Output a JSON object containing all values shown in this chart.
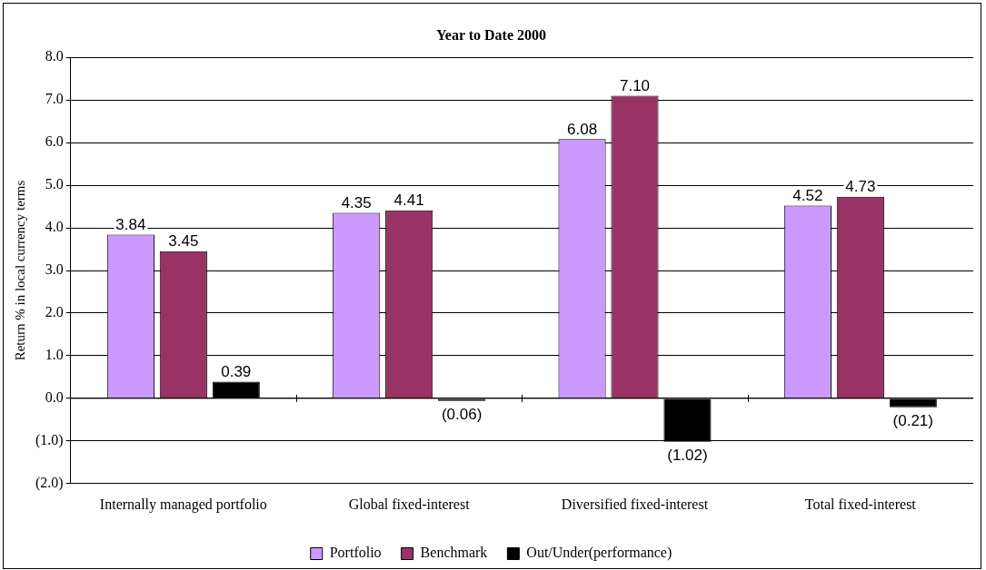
{
  "chart_data": {
    "type": "bar",
    "title": "Year to Date 2000",
    "ylabel": "Return % in local currency terms",
    "categories": [
      "Internally managed portfolio",
      "Global fixed-interest",
      "Diversified fixed-interest",
      "Total fixed-interest"
    ],
    "series": [
      {
        "name": "Portfolio",
        "color": "#cc99ff",
        "values": [
          3.84,
          4.35,
          6.08,
          4.52
        ],
        "value_labels": [
          "3.84",
          "4.35",
          "6.08",
          "4.52"
        ]
      },
      {
        "name": "Benchmark",
        "color": "#993366",
        "values": [
          3.45,
          4.41,
          7.1,
          4.73
        ],
        "value_labels": [
          "3.45",
          "4.41",
          "7.10",
          "4.73"
        ]
      },
      {
        "name": "Out/Under(performance)",
        "color": "#000000",
        "values": [
          0.39,
          -0.06,
          -1.02,
          -0.21
        ],
        "value_labels": [
          "0.39",
          "(0.06)",
          "(1.02)",
          "(0.21)"
        ]
      }
    ],
    "ylim": [
      -2,
      8
    ],
    "yticks": [
      {
        "value": -2,
        "label": "(2.0)"
      },
      {
        "value": -1,
        "label": "(1.0)"
      },
      {
        "value": 0,
        "label": "0.0"
      },
      {
        "value": 1,
        "label": "1.0"
      },
      {
        "value": 2,
        "label": "2.0"
      },
      {
        "value": 3,
        "label": "3.0"
      },
      {
        "value": 4,
        "label": "4.0"
      },
      {
        "value": 5,
        "label": "5.0"
      },
      {
        "value": 6,
        "label": "6.0"
      },
      {
        "value": 7,
        "label": "7.0"
      },
      {
        "value": 8,
        "label": "8.0"
      }
    ],
    "grid": "y",
    "legend": "bottom"
  }
}
